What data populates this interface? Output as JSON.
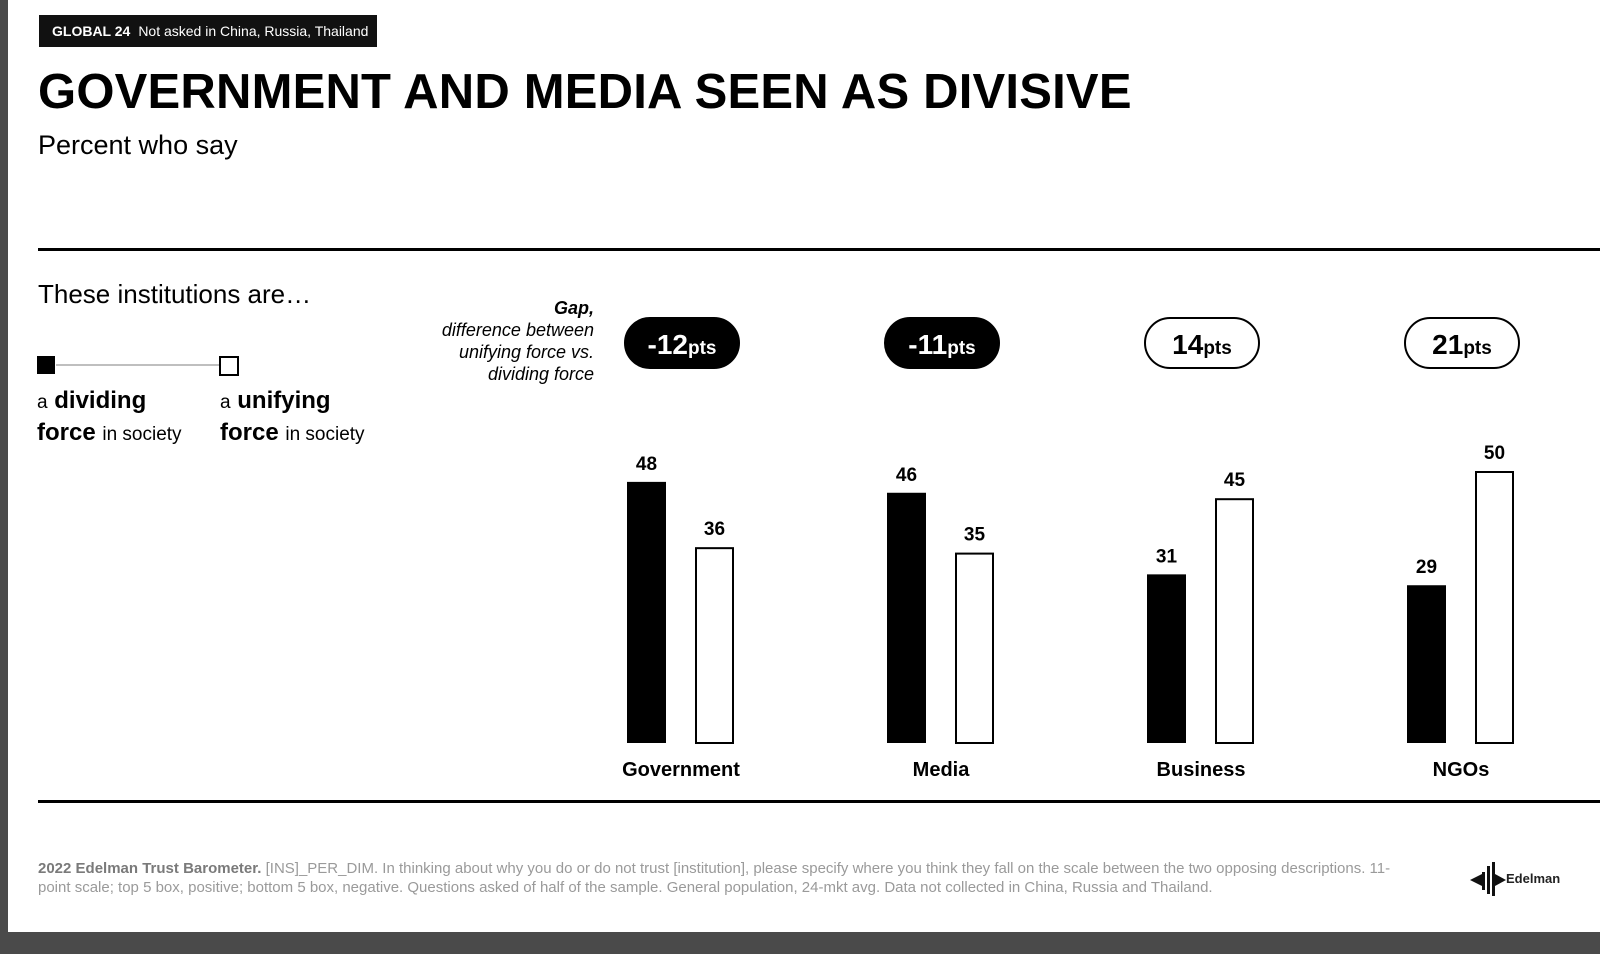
{
  "tag": {
    "bold": "GLOBAL 24",
    "text": "Not asked in China, Russia, Thailand"
  },
  "title": "GOVERNMENT AND MEDIA SEEN AS DIVISIVE",
  "subtitle": "Percent who say",
  "legend": {
    "heading": "These institutions are…",
    "dividing": {
      "pre": "a",
      "bold1": "dividing",
      "bold2": "force",
      "post": "in society"
    },
    "unifying": {
      "pre": "a",
      "bold1": "unifying",
      "bold2": "force",
      "post": "in society"
    }
  },
  "gap_note": {
    "bold": "Gap,",
    "lines": [
      "difference between",
      "unifying force vs.",
      "dividing force"
    ]
  },
  "colors": {
    "dividing": "#000000",
    "unifying": "#ffffff",
    "outline": "#000000"
  },
  "chart_data": {
    "type": "bar",
    "categories": [
      "Government",
      "Media",
      "Business",
      "NGOs"
    ],
    "series": [
      {
        "name": "a dividing force in society",
        "values": [
          48,
          46,
          31,
          29
        ]
      },
      {
        "name": "a unifying force in society",
        "values": [
          36,
          35,
          45,
          50
        ]
      }
    ],
    "gaps": [
      {
        "value": "-12",
        "unit": "pts",
        "negative": true
      },
      {
        "value": "-11",
        "unit": "pts",
        "negative": true
      },
      {
        "value": "14",
        "unit": "pts",
        "negative": false
      },
      {
        "value": "21",
        "unit": "pts",
        "negative": false
      }
    ],
    "ylim": [
      0,
      50
    ],
    "grid": false,
    "legend": "top-left"
  },
  "footer": {
    "bold": "2022 Edelman Trust Barometer.",
    "text": "[INS]_PER_DIM. In thinking about why you do or do not trust [institution], please specify where you think they fall on the scale between the two opposing descriptions. 11-point scale; top 5 box, positive; bottom 5 box, negative. Questions asked of half of the sample. General population, 24-mkt avg. Data not collected in China, Russia and Thailand."
  },
  "logo": {
    "text": "Edelman"
  }
}
